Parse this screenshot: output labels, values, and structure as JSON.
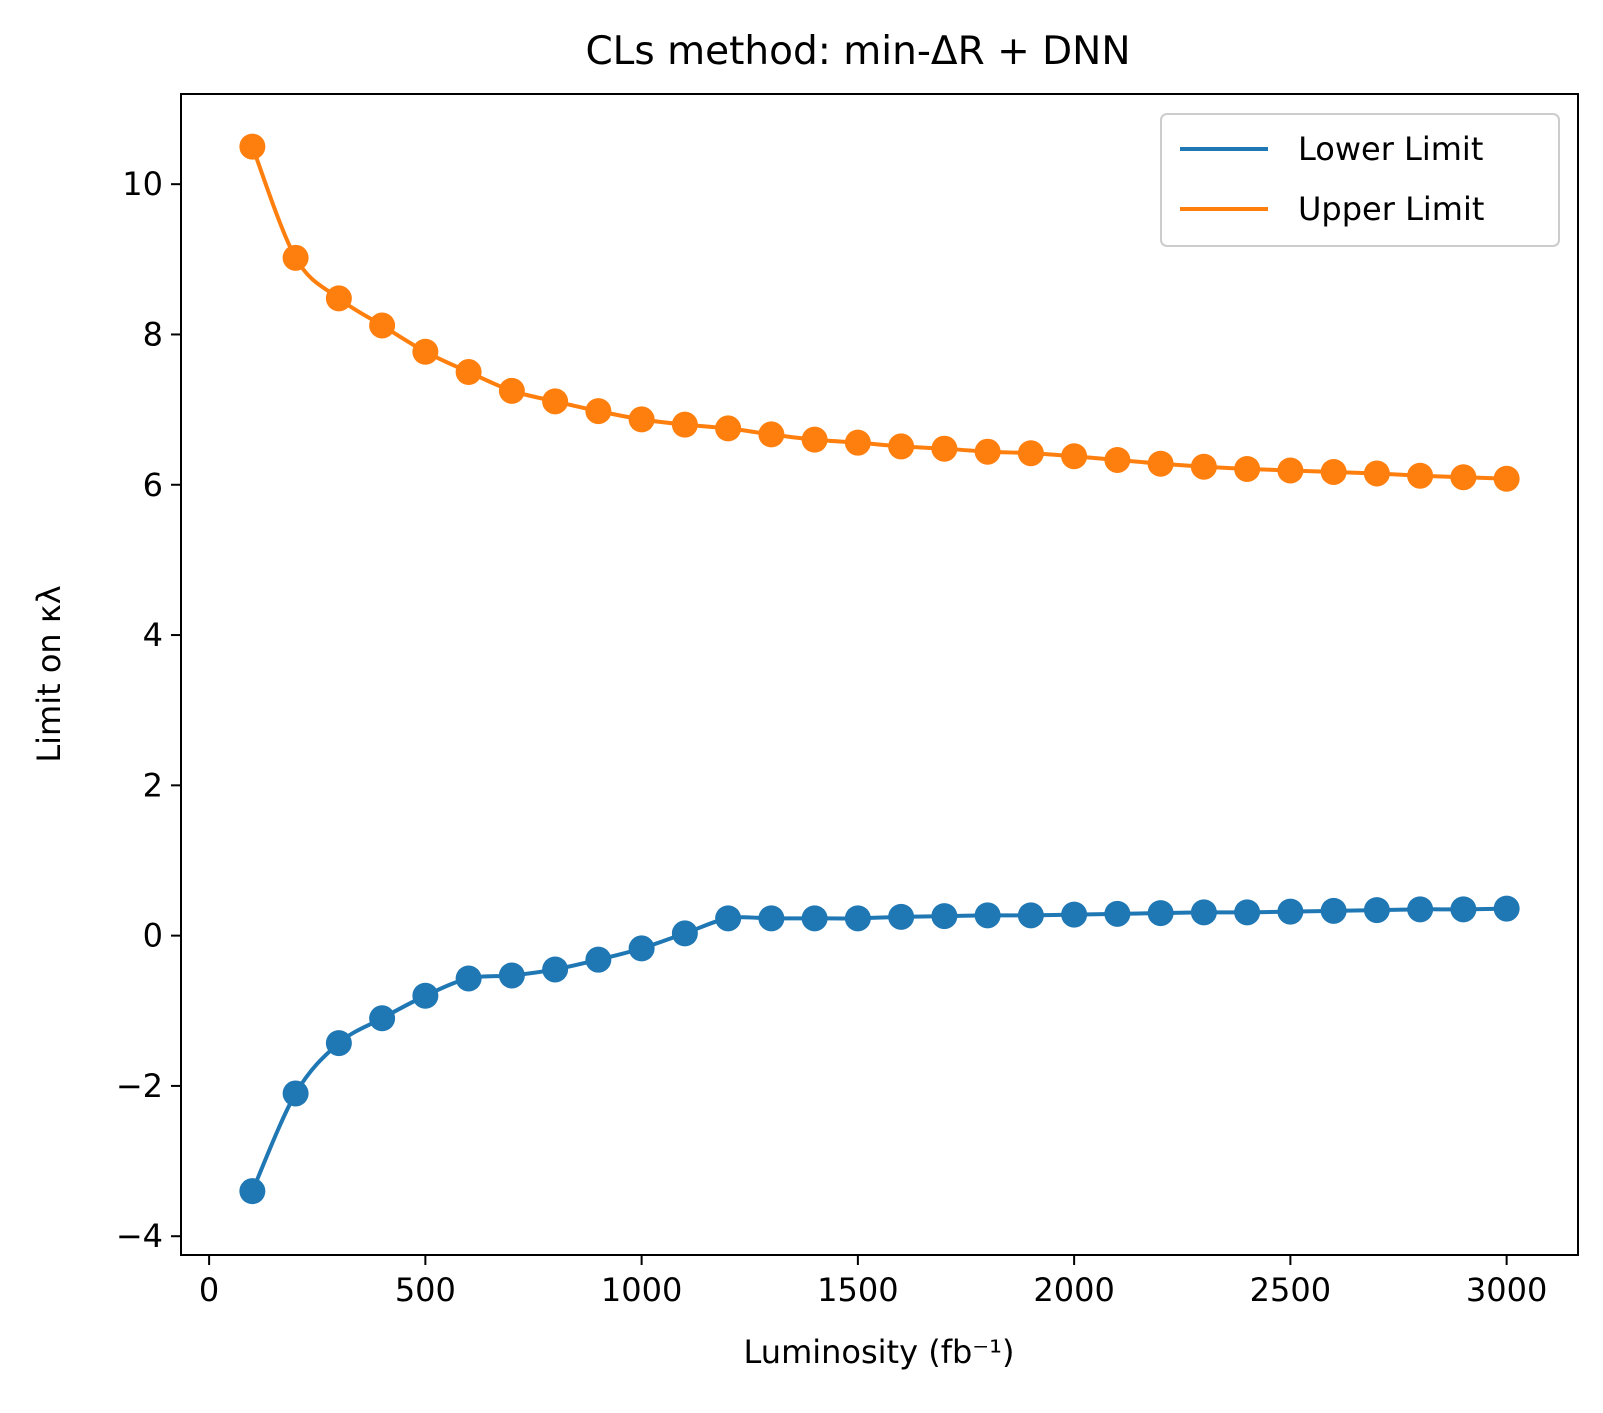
{
  "chart_data": {
    "type": "line",
    "title": "CLs method: min-ΔR + DNN",
    "xlabel": "Luminosity (fb⁻¹)",
    "ylabel": "Limit on κλ",
    "xlim": [
      -65,
      3165
    ],
    "ylim": [
      -4.25,
      11.2
    ],
    "xticks": [
      0,
      500,
      1000,
      1500,
      2000,
      2500,
      3000
    ],
    "xtick_labels": [
      "0",
      "500",
      "1000",
      "1500",
      "2000",
      "2500",
      "3000"
    ],
    "yticks": [
      -4,
      -2,
      0,
      2,
      4,
      6,
      8,
      10
    ],
    "ytick_labels": [
      "−4",
      "−2",
      "0",
      "2",
      "4",
      "6",
      "8",
      "10"
    ],
    "grid": false,
    "legend_position": "top-right",
    "markers": true,
    "x": [
      100,
      200,
      300,
      400,
      500,
      600,
      700,
      800,
      900,
      1000,
      1100,
      1200,
      1300,
      1400,
      1500,
      1600,
      1700,
      1800,
      1900,
      2000,
      2100,
      2200,
      2300,
      2400,
      2500,
      2600,
      2700,
      2800,
      2900,
      3000
    ],
    "series": [
      {
        "name": "Lower Limit",
        "color": "#1f77b4",
        "values": [
          -3.4,
          -2.1,
          -1.43,
          -1.1,
          -0.8,
          -0.57,
          -0.53,
          -0.45,
          -0.32,
          -0.17,
          0.03,
          0.23,
          0.23,
          0.23,
          0.23,
          0.25,
          0.26,
          0.27,
          0.27,
          0.28,
          0.29,
          0.3,
          0.31,
          0.31,
          0.32,
          0.33,
          0.34,
          0.35,
          0.35,
          0.36
        ]
      },
      {
        "name": "Upper Limit",
        "color": "#ff7f0e",
        "values": [
          10.5,
          9.02,
          8.48,
          8.12,
          7.77,
          7.5,
          7.25,
          7.11,
          6.98,
          6.87,
          6.8,
          6.75,
          6.67,
          6.6,
          6.56,
          6.51,
          6.48,
          6.44,
          6.42,
          6.38,
          6.33,
          6.28,
          6.24,
          6.21,
          6.19,
          6.17,
          6.15,
          6.12,
          6.1,
          6.08
        ]
      }
    ]
  }
}
